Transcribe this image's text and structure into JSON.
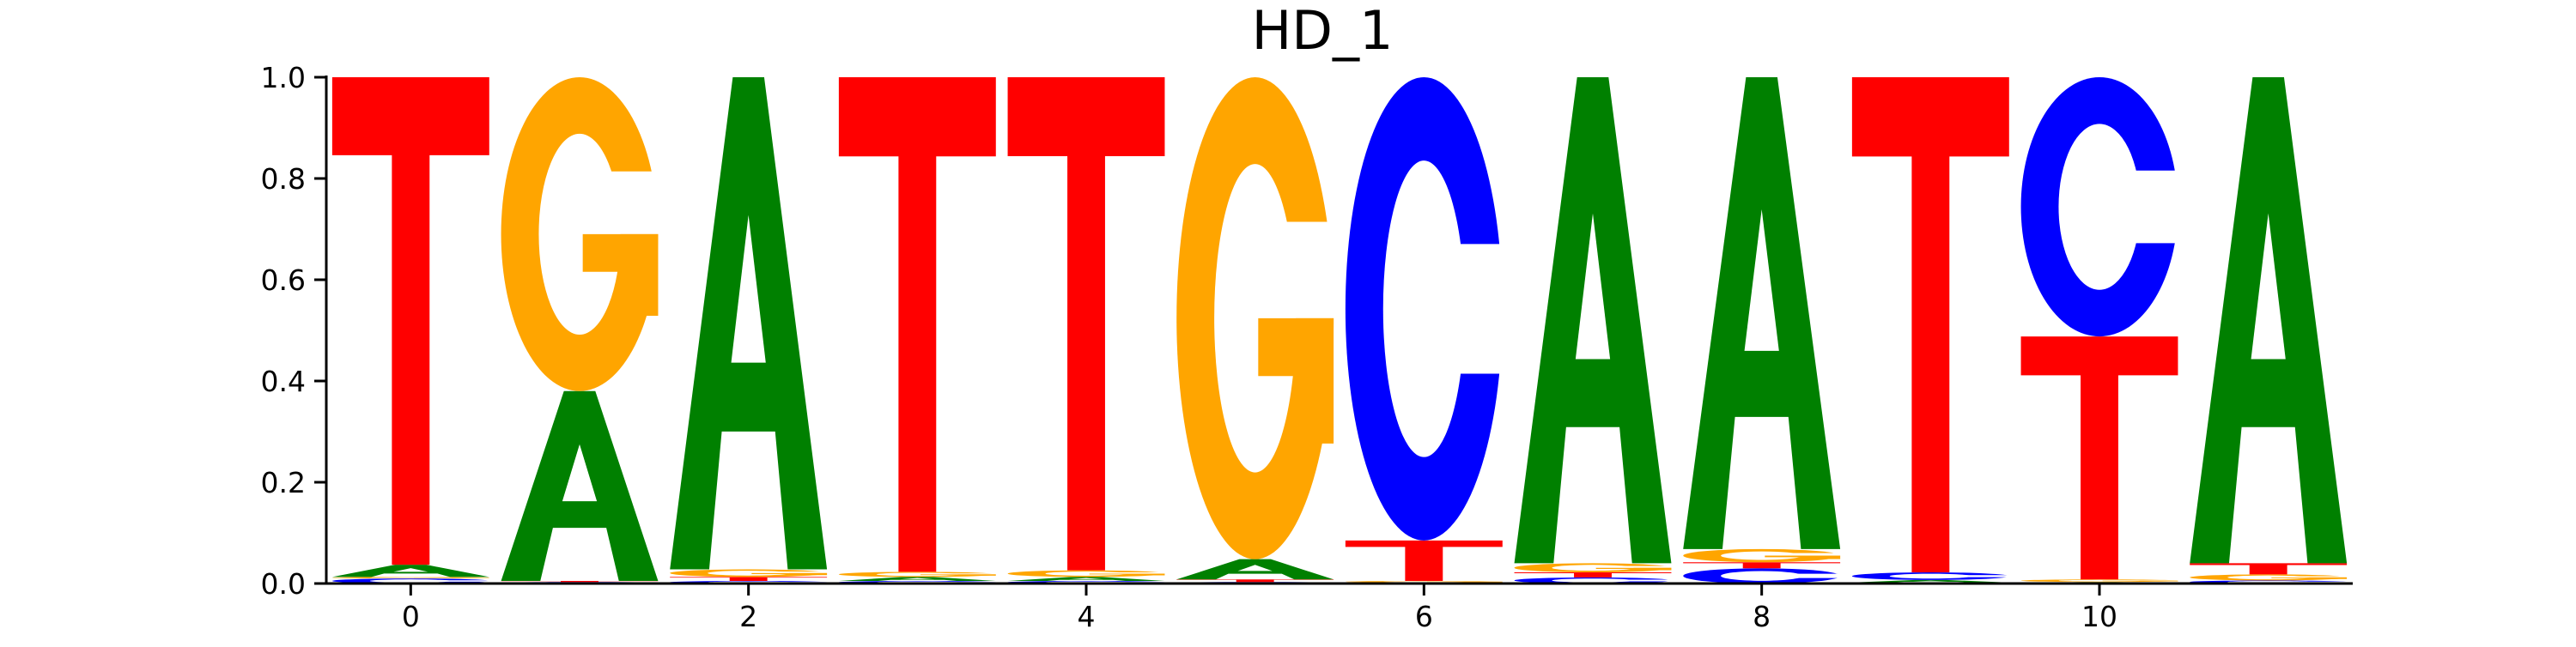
{
  "chart_data": {
    "type": "sequence_logo",
    "title": "HD_1",
    "xlabel": "",
    "ylabel": "",
    "xlim": [
      -0.5,
      11.5
    ],
    "ylim": [
      0,
      1.0
    ],
    "x_ticks": [
      0,
      2,
      4,
      6,
      8,
      10
    ],
    "x_tick_labels": [
      "0",
      "2",
      "4",
      "6",
      "8",
      "10"
    ],
    "y_ticks": [
      0.0,
      0.2,
      0.4,
      0.6,
      0.8,
      1.0
    ],
    "y_tick_labels": [
      "0.0",
      "0.2",
      "0.4",
      "0.6",
      "0.8",
      "1.0"
    ],
    "grid": false,
    "colors": {
      "A": "#008000",
      "C": "#0000ff",
      "G": "#ffa500",
      "T": "#ff0000"
    },
    "positions": [
      {
        "x": 0,
        "letters": [
          {
            "base": "C",
            "value": 0.01
          },
          {
            "base": "G",
            "value": 0.003
          },
          {
            "base": "A",
            "value": 0.024
          },
          {
            "base": "T",
            "value": 0.963
          }
        ]
      },
      {
        "x": 1,
        "letters": [
          {
            "base": "C",
            "value": 0.003
          },
          {
            "base": "T",
            "value": 0.002
          },
          {
            "base": "A",
            "value": 0.375
          },
          {
            "base": "G",
            "value": 0.62
          }
        ]
      },
      {
        "x": 2,
        "letters": [
          {
            "base": "C",
            "value": 0.005
          },
          {
            "base": "T",
            "value": 0.008
          },
          {
            "base": "G",
            "value": 0.015
          },
          {
            "base": "A",
            "value": 0.972
          }
        ]
      },
      {
        "x": 3,
        "letters": [
          {
            "base": "C",
            "value": 0.005
          },
          {
            "base": "A",
            "value": 0.008
          },
          {
            "base": "G",
            "value": 0.01
          },
          {
            "base": "T",
            "value": 0.977
          }
        ]
      },
      {
        "x": 4,
        "letters": [
          {
            "base": "C",
            "value": 0.005
          },
          {
            "base": "A",
            "value": 0.008
          },
          {
            "base": "G",
            "value": 0.013
          },
          {
            "base": "T",
            "value": 0.974
          }
        ]
      },
      {
        "x": 5,
        "letters": [
          {
            "base": "C",
            "value": 0.003
          },
          {
            "base": "T",
            "value": 0.005
          },
          {
            "base": "A",
            "value": 0.04
          },
          {
            "base": "G",
            "value": 0.952
          }
        ]
      },
      {
        "x": 6,
        "letters": [
          {
            "base": "A",
            "value": 0.002
          },
          {
            "base": "G",
            "value": 0.003
          },
          {
            "base": "T",
            "value": 0.08
          },
          {
            "base": "C",
            "value": 0.915
          }
        ]
      },
      {
        "x": 7,
        "letters": [
          {
            "base": "C",
            "value": 0.012
          },
          {
            "base": "T",
            "value": 0.01
          },
          {
            "base": "G",
            "value": 0.018
          },
          {
            "base": "A",
            "value": 0.96
          }
        ]
      },
      {
        "x": 8,
        "letters": [
          {
            "base": "C",
            "value": 0.03
          },
          {
            "base": "T",
            "value": 0.012
          },
          {
            "base": "G",
            "value": 0.026
          },
          {
            "base": "A",
            "value": 0.932
          }
        ]
      },
      {
        "x": 9,
        "letters": [
          {
            "base": "G",
            "value": 0.002
          },
          {
            "base": "A",
            "value": 0.005
          },
          {
            "base": "C",
            "value": 0.015
          },
          {
            "base": "T",
            "value": 0.978
          }
        ]
      },
      {
        "x": 10,
        "letters": [
          {
            "base": "A",
            "value": 0.003
          },
          {
            "base": "G",
            "value": 0.005
          },
          {
            "base": "T",
            "value": 0.48
          },
          {
            "base": "C",
            "value": 0.512
          }
        ]
      },
      {
        "x": 11,
        "letters": [
          {
            "base": "C",
            "value": 0.006
          },
          {
            "base": "G",
            "value": 0.012
          },
          {
            "base": "T",
            "value": 0.022
          },
          {
            "base": "A",
            "value": 0.96
          }
        ]
      }
    ]
  }
}
